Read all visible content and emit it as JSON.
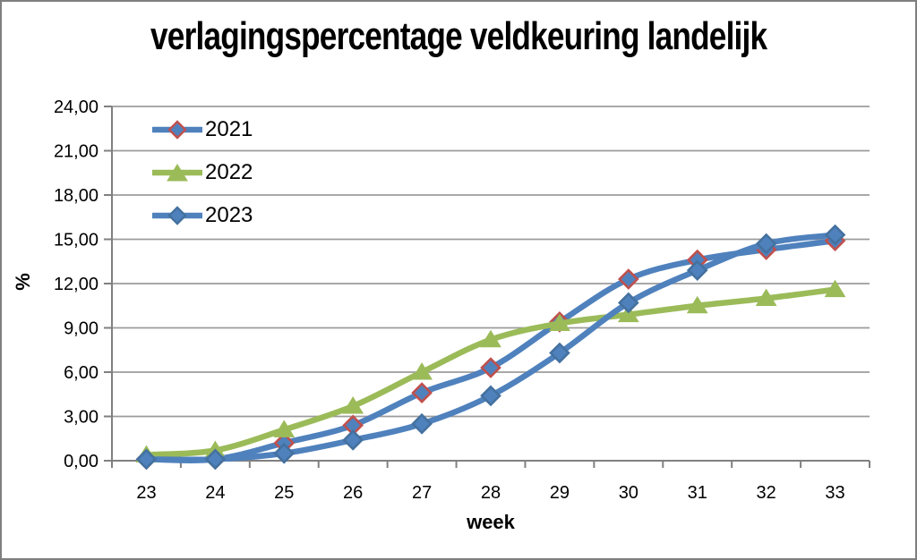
{
  "chart_data": {
    "type": "line",
    "title": "verlagingspercentage veldkeuring landelijk",
    "xlabel": "week",
    "ylabel": "%",
    "x": [
      23,
      24,
      25,
      26,
      27,
      28,
      29,
      30,
      31,
      32,
      33
    ],
    "xtick_labels": [
      "23",
      "24",
      "25",
      "26",
      "27",
      "28",
      "29",
      "30",
      "31",
      "32",
      "33"
    ],
    "ytick_labels": [
      "0,00",
      "3,00",
      "6,00",
      "9,00",
      "12,00",
      "15,00",
      "18,00",
      "21,00",
      "24,00"
    ],
    "yticks": [
      0,
      3,
      6,
      9,
      12,
      15,
      18,
      21,
      24
    ],
    "ylim": [
      0,
      24
    ],
    "grid": "horizontal",
    "legend_position": "top-left-inside",
    "series": [
      {
        "name": "2021",
        "marker": "diamond",
        "line_color": "#4F81BD",
        "marker_fill": "#4F81BD",
        "marker_stroke": "#C0504D",
        "values": [
          0.1,
          0.1,
          1.2,
          2.4,
          4.6,
          6.3,
          9.4,
          12.3,
          13.6,
          14.3,
          14.9
        ]
      },
      {
        "name": "2022",
        "marker": "triangle",
        "line_color": "#9BBB59",
        "marker_fill": "#9BBB59",
        "marker_stroke": "#9BBB59",
        "values": [
          0.4,
          0.7,
          2.1,
          3.7,
          6.0,
          8.2,
          9.3,
          9.9,
          10.5,
          11.0,
          11.6
        ]
      },
      {
        "name": "2023",
        "marker": "diamond",
        "line_color": "#4F81BD",
        "marker_fill": "#4F81BD",
        "marker_stroke": "#44719F",
        "values": [
          0.1,
          0.1,
          0.5,
          1.4,
          2.5,
          4.4,
          7.3,
          10.7,
          12.9,
          14.7,
          15.3
        ]
      }
    ],
    "colors": {
      "gridline": "#9B9B9B",
      "axis": "#808080",
      "frame_border": "#7F7F7F",
      "background": "#FFFFFF",
      "text": "#000000"
    }
  }
}
